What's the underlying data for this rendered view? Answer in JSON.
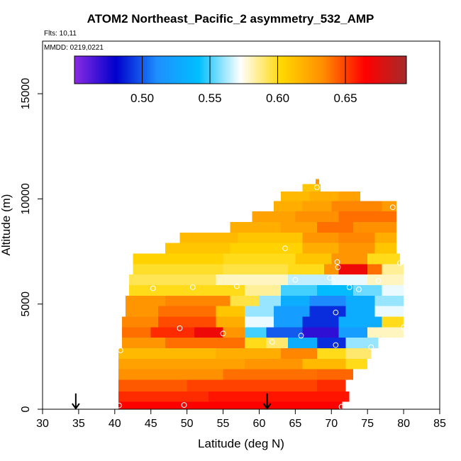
{
  "header": {
    "title": "ATOM2 Northeast_Pacific_2 asymmetry_532_AMP",
    "flights_note": "Flts: 10,11",
    "date_note": "MMDD: 0219,0221"
  },
  "chart_data": {
    "type": "heatmap",
    "title": "ATOM2 Northeast_Pacific_2 asymmetry_532_AMP",
    "xlabel": "Latitude (deg N)",
    "ylabel": "Altitude (m)",
    "xlim": [
      30,
      85
    ],
    "ylim": [
      0,
      17500
    ],
    "x_ticks": [
      30,
      35,
      40,
      45,
      50,
      55,
      60,
      65,
      70,
      75,
      80,
      85
    ],
    "y_ticks": [
      0,
      5000,
      10000,
      15000
    ],
    "grid": false,
    "colorbar": {
      "placement": "top",
      "range": [
        0.45,
        0.695
      ],
      "ticks": [
        0.5,
        0.55,
        0.6,
        0.65
      ],
      "tick_labels": [
        "0.50",
        "0.55",
        "0.60",
        "0.65"
      ],
      "colors": [
        "#8a2be2",
        "#0000cd",
        "#1e90ff",
        "#00bfff",
        "#ffffff",
        "#ffd700",
        "#ff8c00",
        "#ff0000",
        "#a52a2a"
      ]
    },
    "layers": [
      {
        "y0": 0,
        "y1": 350,
        "segments": [
          [
            40.5,
            71.5,
            0.665
          ]
        ]
      },
      {
        "y0": 350,
        "y1": 850,
        "segments": [
          [
            40.5,
            53,
            0.655
          ],
          [
            53,
            71.5,
            0.66
          ],
          [
            71.5,
            72.5,
            0.66
          ]
        ]
      },
      {
        "y0": 850,
        "y1": 1400,
        "segments": [
          [
            40.5,
            50,
            0.645
          ],
          [
            50,
            68,
            0.65
          ],
          [
            68,
            72,
            0.655
          ]
        ]
      },
      {
        "y0": 1400,
        "y1": 1900,
        "segments": [
          [
            40.5,
            55,
            0.632
          ],
          [
            55,
            68,
            0.64
          ],
          [
            68,
            73,
            0.642
          ]
        ]
      },
      {
        "y0": 1900,
        "y1": 2400,
        "segments": [
          [
            40.5,
            58,
            0.625
          ],
          [
            58,
            66,
            0.63
          ],
          [
            66,
            72,
            0.615
          ],
          [
            72,
            75,
            0.6
          ]
        ]
      },
      {
        "y0": 2400,
        "y1": 2900,
        "segments": [
          [
            40.5,
            54,
            0.615
          ],
          [
            54,
            63,
            0.62
          ],
          [
            63,
            68,
            0.635
          ],
          [
            68,
            72,
            0.6
          ],
          [
            72,
            75.5,
            0.59
          ]
        ]
      },
      {
        "y0": 2900,
        "y1": 3400,
        "segments": [
          [
            41,
            47,
            0.63
          ],
          [
            47,
            58,
            0.64
          ],
          [
            58,
            61,
            0.6
          ],
          [
            61,
            64,
            0.59
          ],
          [
            64,
            68,
            0.53
          ],
          [
            68,
            72,
            0.49
          ],
          [
            72,
            76.5,
            0.56
          ]
        ]
      },
      {
        "y0": 3400,
        "y1": 3900,
        "segments": [
          [
            41,
            45,
            0.64
          ],
          [
            45,
            51,
            0.655
          ],
          [
            51,
            55,
            0.67
          ],
          [
            55,
            58,
            0.63
          ],
          [
            58,
            61,
            0.55
          ],
          [
            61,
            66,
            0.5
          ],
          [
            66,
            71,
            0.47
          ],
          [
            71,
            75,
            0.52
          ],
          [
            75,
            80,
            0.58
          ]
        ]
      },
      {
        "y0": 3900,
        "y1": 4400,
        "segments": [
          [
            41,
            46,
            0.635
          ],
          [
            46,
            54,
            0.648
          ],
          [
            54,
            58,
            0.62
          ],
          [
            58,
            62,
            0.57
          ],
          [
            62,
            66,
            0.52
          ],
          [
            66,
            71,
            0.49
          ],
          [
            71,
            77,
            0.53
          ],
          [
            77,
            80,
            0.6
          ]
        ]
      },
      {
        "y0": 4400,
        "y1": 4900,
        "segments": [
          [
            41.5,
            46,
            0.63
          ],
          [
            46,
            54,
            0.64
          ],
          [
            54,
            58,
            0.61
          ],
          [
            58,
            62,
            0.56
          ],
          [
            62,
            67,
            0.52
          ],
          [
            67,
            72,
            0.49
          ],
          [
            72,
            76,
            0.53
          ],
          [
            76,
            80,
            0.57
          ]
        ]
      },
      {
        "y0": 4900,
        "y1": 5400,
        "segments": [
          [
            41.5,
            47,
            0.63
          ],
          [
            47,
            56,
            0.635
          ],
          [
            56,
            60,
            0.595
          ],
          [
            60,
            63,
            0.56
          ],
          [
            63,
            67,
            0.53
          ],
          [
            67,
            72,
            0.51
          ],
          [
            72,
            76,
            0.53
          ],
          [
            76,
            80,
            0.56
          ]
        ]
      },
      {
        "y0": 5400,
        "y1": 5900,
        "segments": [
          [
            42,
            58,
            0.6
          ],
          [
            58,
            63,
            0.585
          ],
          [
            63,
            68,
            0.55
          ],
          [
            68,
            73,
            0.54
          ],
          [
            73,
            77,
            0.555
          ],
          [
            77,
            80,
            0.57
          ]
        ]
      },
      {
        "y0": 5900,
        "y1": 6400,
        "segments": [
          [
            42,
            54,
            0.593
          ],
          [
            54,
            64,
            0.58
          ],
          [
            64,
            70,
            0.565
          ],
          [
            70,
            75,
            0.57
          ],
          [
            75,
            80,
            0.58
          ]
        ]
      },
      {
        "y0": 6400,
        "y1": 6900,
        "segments": [
          [
            42.5,
            55,
            0.598
          ],
          [
            55,
            64,
            0.595
          ],
          [
            64,
            69,
            0.6
          ],
          [
            69,
            71,
            0.63
          ],
          [
            71,
            75,
            0.67
          ],
          [
            75,
            77,
            0.64
          ],
          [
            77,
            80,
            0.585
          ]
        ]
      },
      {
        "y0": 6900,
        "y1": 7400,
        "segments": [
          [
            42.5,
            55,
            0.605
          ],
          [
            55,
            65,
            0.6
          ],
          [
            65,
            70,
            0.61
          ],
          [
            70,
            75,
            0.63
          ],
          [
            75,
            79.5,
            0.6
          ]
        ]
      },
      {
        "y0": 7400,
        "y1": 7900,
        "segments": [
          [
            47,
            56,
            0.61
          ],
          [
            56,
            66,
            0.605
          ],
          [
            66,
            71,
            0.62
          ],
          [
            71,
            76,
            0.63
          ],
          [
            76,
            79,
            0.61
          ]
        ]
      },
      {
        "y0": 7900,
        "y1": 8400,
        "segments": [
          [
            49,
            57,
            0.615
          ],
          [
            57,
            66,
            0.61
          ],
          [
            66,
            71,
            0.63
          ],
          [
            71,
            76,
            0.635
          ],
          [
            76,
            79,
            0.62
          ]
        ]
      },
      {
        "y0": 8400,
        "y1": 8900,
        "segments": [
          [
            56,
            63,
            0.62
          ],
          [
            63,
            68,
            0.625
          ],
          [
            68,
            73,
            0.64
          ],
          [
            73,
            79,
            0.632
          ]
        ]
      },
      {
        "y0": 8900,
        "y1": 9400,
        "segments": [
          [
            59,
            65,
            0.625
          ],
          [
            65,
            71,
            0.632
          ],
          [
            71,
            79,
            0.64
          ]
        ]
      },
      {
        "y0": 9400,
        "y1": 9900,
        "segments": [
          [
            62,
            66,
            0.62
          ],
          [
            66,
            70,
            0.625
          ],
          [
            70,
            77,
            0.635
          ],
          [
            77,
            79,
            0.628
          ]
        ]
      },
      {
        "y0": 9900,
        "y1": 10350,
        "segments": [
          [
            63,
            67,
            0.615
          ],
          [
            67,
            71,
            0.62
          ],
          [
            71,
            74,
            0.625
          ]
        ]
      },
      {
        "y0": 10350,
        "y1": 10700,
        "segments": [
          [
            66,
            68.5,
            0.61
          ]
        ]
      },
      {
        "y0": 10700,
        "y1": 10950,
        "segments": [
          [
            67.8,
            68.3,
            0.63
          ]
        ]
      }
    ],
    "sample_points": [
      {
        "x": 40.6,
        "y": 180
      },
      {
        "x": 49.6,
        "y": 200
      },
      {
        "x": 71.4,
        "y": 120
      },
      {
        "x": 40.8,
        "y": 2800
      },
      {
        "x": 49,
        "y": 3850
      },
      {
        "x": 55,
        "y": 3600
      },
      {
        "x": 61.8,
        "y": 3200
      },
      {
        "x": 65.8,
        "y": 3500
      },
      {
        "x": 70.6,
        "y": 3050
      },
      {
        "x": 75.5,
        "y": 2950
      },
      {
        "x": 70.6,
        "y": 4600
      },
      {
        "x": 69.8,
        "y": 6250
      },
      {
        "x": 65,
        "y": 6150
      },
      {
        "x": 56.9,
        "y": 5850
      },
      {
        "x": 50.8,
        "y": 5800
      },
      {
        "x": 45.3,
        "y": 5750
      },
      {
        "x": 72.5,
        "y": 5800
      },
      {
        "x": 73.8,
        "y": 5700
      },
      {
        "x": 76.5,
        "y": 6100
      },
      {
        "x": 70.9,
        "y": 6750
      },
      {
        "x": 70.8,
        "y": 7000
      },
      {
        "x": 79.5,
        "y": 6950
      },
      {
        "x": 63.6,
        "y": 7650
      },
      {
        "x": 78.5,
        "y": 9600
      },
      {
        "x": 68,
        "y": 10550
      },
      {
        "x": 80,
        "y": 3900
      }
    ],
    "arrows": [
      {
        "x": 34.6,
        "from_y": 750,
        "to_y": 0
      },
      {
        "x": 61.1,
        "from_y": 750,
        "to_y": 0
      }
    ]
  }
}
